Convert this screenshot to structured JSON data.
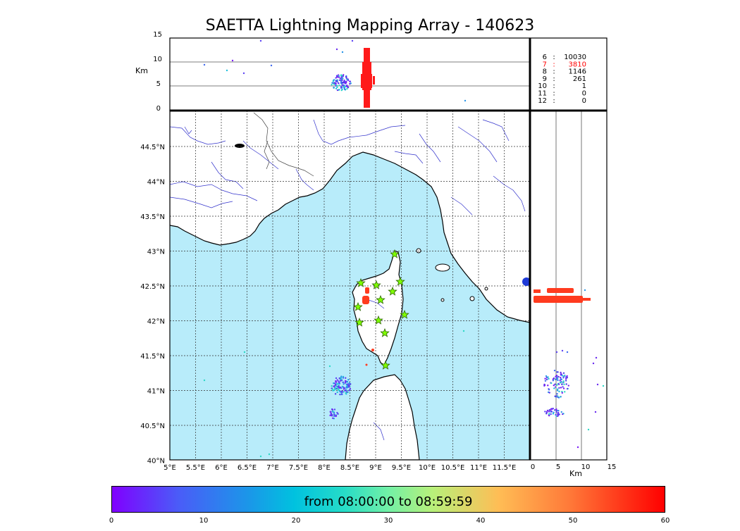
{
  "title": "SAETTA Lightning Mapping Array - 140623",
  "top_panel": {
    "ylabel": "Km",
    "yticks": [
      "15",
      "10",
      "5",
      "0"
    ],
    "legend_rows": [
      {
        "k": "6",
        "sep": ":",
        "v": "10030",
        "color": "#000000"
      },
      {
        "k": "7",
        "sep": ":",
        "v": "3810",
        "color": "#ff0000"
      },
      {
        "k": "8",
        "sep": ":",
        "v": "1146",
        "color": "#000000"
      },
      {
        "k": "9",
        "sep": ":",
        "v": "261",
        "color": "#000000"
      },
      {
        "k": "10",
        "sep": ":",
        "v": "1",
        "color": "#000000"
      },
      {
        "k": "11",
        "sep": ":",
        "v": "0",
        "color": "#000000"
      },
      {
        "k": "12",
        "sep": ":",
        "v": "0",
        "color": "#000000"
      }
    ]
  },
  "map_panel": {
    "lon_ticks": [
      "5°E",
      "5.5°E",
      "6°E",
      "6.5°E",
      "7°E",
      "7.5°E",
      "8°E",
      "8.5°E",
      "9°E",
      "9.5°E",
      "10°E",
      "10.5°E",
      "11°E",
      "11.5°E"
    ],
    "lat_ticks": [
      "44.5°N",
      "44°N",
      "43.5°N",
      "43°N",
      "42.5°N",
      "42°N",
      "41.5°N",
      "41°N",
      "40.5°N",
      "40°N"
    ]
  },
  "side_panel": {
    "xticks": [
      "0",
      "5",
      "10",
      "15"
    ],
    "xlabel": "Km"
  },
  "colorbar": {
    "label": "from 08:00:00 to 08:59:59",
    "ticks": [
      "0",
      "10",
      "20",
      "30",
      "40",
      "50",
      "60"
    ]
  },
  "colors": {
    "sea": "#b8ecfa",
    "land": "#ffffff",
    "rivers": "#3333cc",
    "station_fill": "#7fff00",
    "station_stroke": "#2a6000"
  }
}
